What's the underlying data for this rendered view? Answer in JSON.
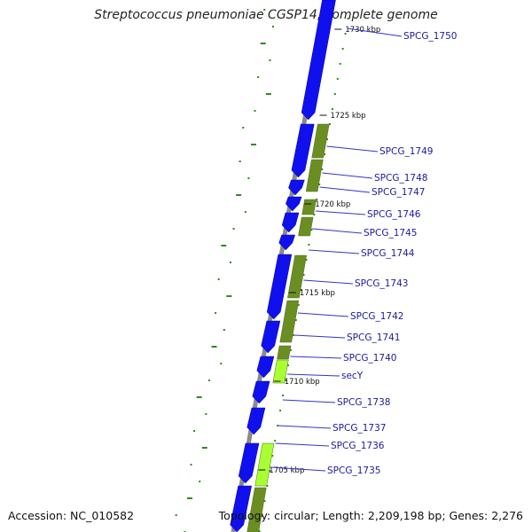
{
  "title": "Streptococcus pneumoniae CGSP14, complete genome",
  "footer": {
    "accession": "Accession: NC_010582",
    "summary": "Topology: circular; Length: 2,209,198 bp; Genes: 2,276"
  },
  "colors": {
    "forward_gene": "#1010ee",
    "backbone": "#8a8a8a",
    "cds_track": "#6b8e23",
    "cds_track_light": "#aaff33",
    "gc_dots": "#2e8b1e",
    "label": "#1a1aa0",
    "leader": "#3333cc"
  },
  "scale_labels": [
    "1730 kbp",
    "1725 kbp",
    "1720 kbp",
    "1715 kbp",
    "1710 kbp",
    "1705 kbp"
  ],
  "gene_labels": [
    "SPCG_1750",
    "SPCG_1749",
    "SPCG_1748",
    "SPCG_1747",
    "SPCG_1746",
    "SPCG_1745",
    "SPCG_1744",
    "SPCG_1743",
    "SPCG_1742",
    "SPCG_1741",
    "SPCG_1740",
    "secY",
    "SPCG_1738",
    "SPCG_1737",
    "SPCG_1736",
    "SPCG_1735"
  ]
}
